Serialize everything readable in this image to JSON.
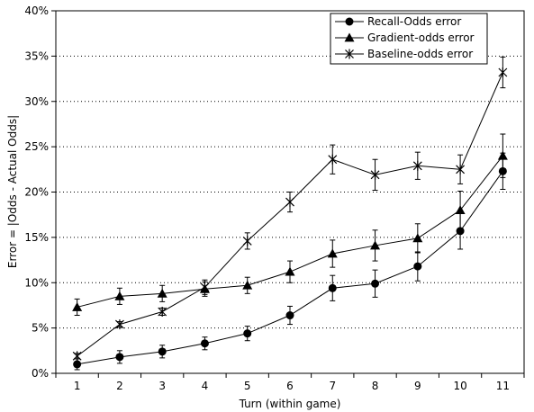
{
  "chart_data": {
    "type": "line",
    "title": "",
    "xlabel": "Turn (within game)",
    "ylabel": "Error = |Odds - Actual Odds|",
    "x": [
      1,
      2,
      3,
      4,
      5,
      6,
      7,
      8,
      9,
      10,
      11
    ],
    "ylim": [
      0,
      40
    ],
    "yticks": [
      "0%",
      "5%",
      "10%",
      "15%",
      "20%",
      "25%",
      "30%",
      "35%",
      "40%"
    ],
    "y_tick_values": [
      0,
      5,
      10,
      15,
      20,
      25,
      30,
      35,
      40
    ],
    "y_unit": "%",
    "grid": "horizontal dotted",
    "legend_position": "top-right",
    "series": [
      {
        "name": "Recall-Odds error",
        "marker": "circle",
        "color": "#000000",
        "values": [
          1.0,
          1.8,
          2.4,
          3.3,
          4.4,
          6.4,
          9.4,
          9.9,
          11.8,
          15.7,
          22.3
        ],
        "error": [
          0.6,
          0.7,
          0.7,
          0.7,
          0.8,
          1.0,
          1.4,
          1.5,
          1.6,
          2.0,
          2.0
        ]
      },
      {
        "name": "Gradient-odds error",
        "marker": "triangle",
        "color": "#000000",
        "values": [
          7.3,
          8.5,
          8.8,
          9.3,
          9.7,
          11.2,
          13.2,
          14.1,
          14.9,
          18.0,
          24.0
        ],
        "error": [
          0.9,
          0.9,
          0.9,
          0.8,
          0.9,
          1.2,
          1.5,
          1.7,
          1.6,
          2.1,
          2.4
        ]
      },
      {
        "name": "Baseline-odds error",
        "marker": "star",
        "color": "#000000",
        "values": [
          1.9,
          5.4,
          6.8,
          9.5,
          14.6,
          18.9,
          23.6,
          21.9,
          22.9,
          22.5,
          33.2
        ],
        "error": [
          0.3,
          0.3,
          0.4,
          0.8,
          0.9,
          1.1,
          1.6,
          1.7,
          1.5,
          1.6,
          1.7
        ]
      }
    ]
  }
}
